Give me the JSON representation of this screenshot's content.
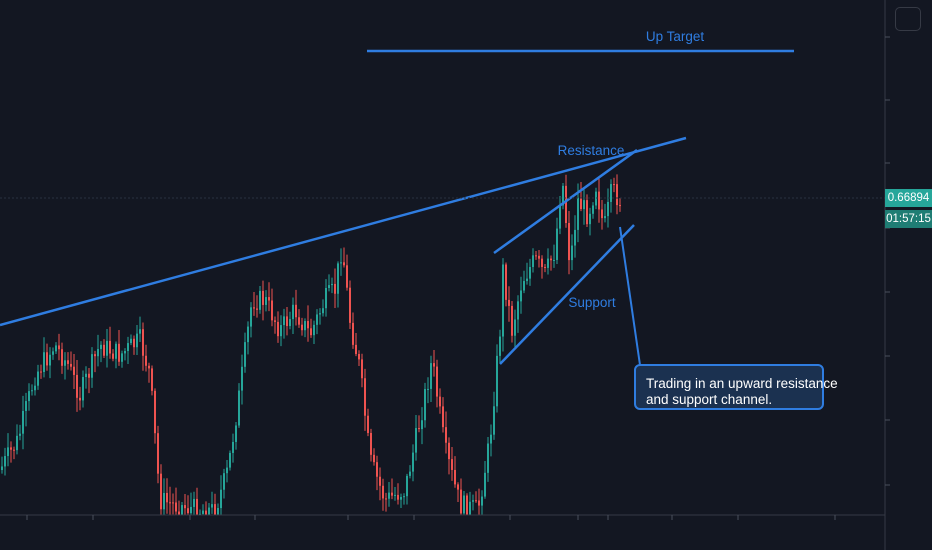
{
  "chart_data": {
    "type": "candlestick",
    "last_price": "0.66894",
    "countdown": "01:57:15",
    "colors": {
      "background": "#131722",
      "up": "#26a69a",
      "down": "#ef5350",
      "annotation": "#2f7de1",
      "callout_fill": "#1b3150",
      "last_price_badge": "#26a69a"
    },
    "annotations": {
      "up_target": "Up Target",
      "resistance": "Resistance",
      "support": "Support",
      "callout_line1": "Trading in an upward resistance",
      "callout_line2": "and support channel."
    },
    "grid": false,
    "axis_labels_visible": false
  }
}
